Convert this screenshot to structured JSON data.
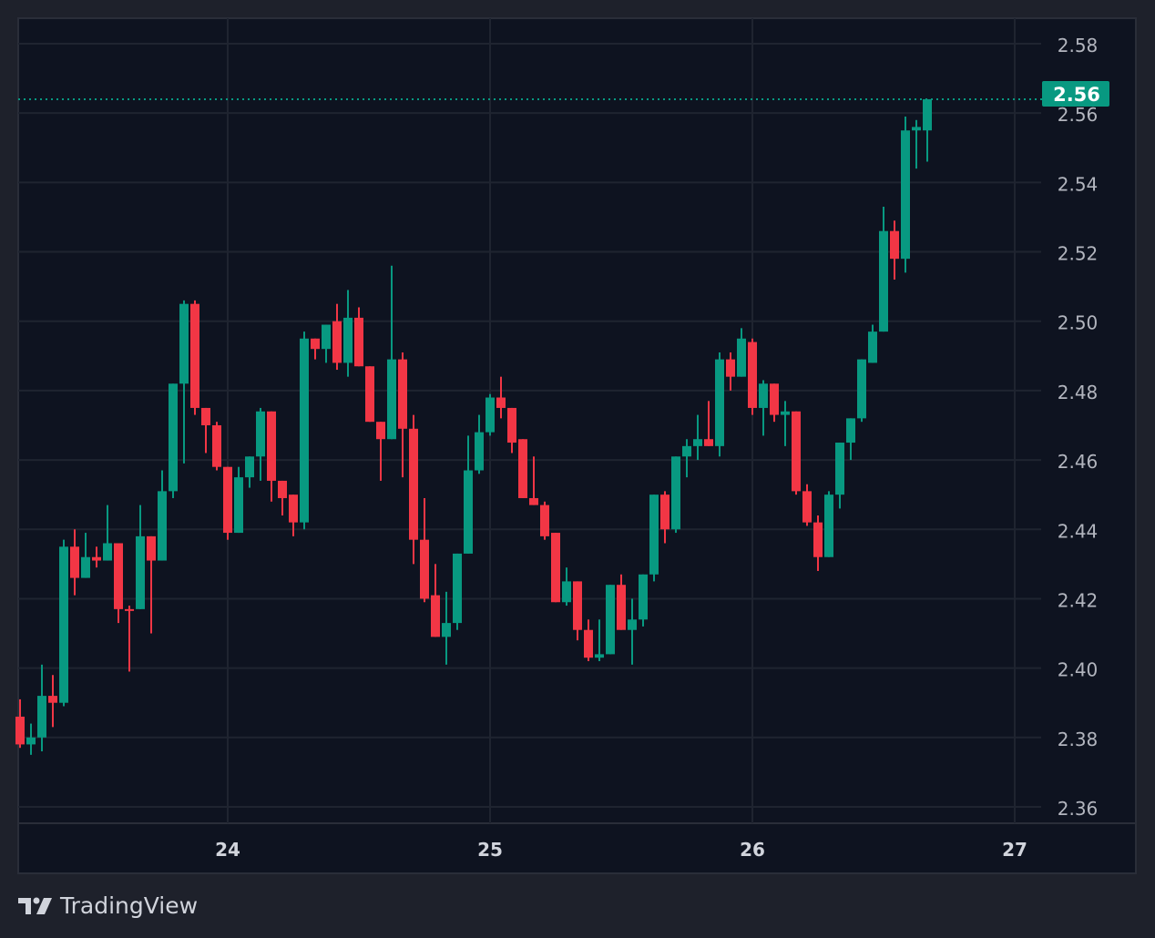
{
  "brand": "TradingView",
  "colors": {
    "up": "#089981",
    "down": "#f23645",
    "panel": "#0e1320",
    "grid": "#1f2430",
    "background": "#1e212b"
  },
  "chart_data": {
    "type": "candlestick",
    "interval": "1h",
    "x_ticks": [
      "24",
      "25",
      "26",
      "27"
    ],
    "y_ticks": [
      "2.58",
      "2.56",
      "2.54",
      "2.52",
      "2.50",
      "2.48",
      "2.46",
      "2.44",
      "2.42",
      "2.40",
      "2.38",
      "2.36"
    ],
    "ylim": [
      2.355,
      2.585
    ],
    "last_price": 2.564,
    "last_price_label": "2.56",
    "grid": true,
    "candles": [
      [
        2.386,
        2.391,
        2.377,
        2.378
      ],
      [
        2.378,
        2.384,
        2.375,
        2.38
      ],
      [
        2.38,
        2.401,
        2.376,
        2.392
      ],
      [
        2.392,
        2.398,
        2.383,
        2.39
      ],
      [
        2.39,
        2.437,
        2.389,
        2.435
      ],
      [
        2.435,
        2.44,
        2.421,
        2.426
      ],
      [
        2.426,
        2.439,
        2.426,
        2.432
      ],
      [
        2.432,
        2.435,
        2.429,
        2.431
      ],
      [
        2.431,
        2.447,
        2.431,
        2.436
      ],
      [
        2.436,
        2.436,
        2.413,
        2.417
      ],
      [
        2.417,
        2.418,
        2.399,
        2.4165
      ],
      [
        2.417,
        2.447,
        2.417,
        2.438
      ],
      [
        2.438,
        2.438,
        2.41,
        2.431
      ],
      [
        2.431,
        2.457,
        2.431,
        2.451
      ],
      [
        2.451,
        2.482,
        2.449,
        2.482
      ],
      [
        2.482,
        2.506,
        2.459,
        2.505
      ],
      [
        2.505,
        2.506,
        2.473,
        2.475
      ],
      [
        2.475,
        2.475,
        2.462,
        2.47
      ],
      [
        2.47,
        2.471,
        2.457,
        2.458
      ],
      [
        2.458,
        2.458,
        2.437,
        2.439
      ],
      [
        2.439,
        2.458,
        2.439,
        2.455
      ],
      [
        2.455,
        2.461,
        2.452,
        2.461
      ],
      [
        2.461,
        2.475,
        2.454,
        2.474
      ],
      [
        2.474,
        2.474,
        2.448,
        2.454
      ],
      [
        2.454,
        2.454,
        2.444,
        2.449
      ],
      [
        2.45,
        2.45,
        2.438,
        2.442
      ],
      [
        2.442,
        2.497,
        2.44,
        2.495
      ],
      [
        2.495,
        2.495,
        2.489,
        2.492
      ],
      [
        2.492,
        2.499,
        2.488,
        2.499
      ],
      [
        2.5,
        2.505,
        2.486,
        2.488
      ],
      [
        2.488,
        2.509,
        2.484,
        2.501
      ],
      [
        2.501,
        2.504,
        2.487,
        2.487
      ],
      [
        2.487,
        2.487,
        2.471,
        2.471
      ],
      [
        2.471,
        2.471,
        2.454,
        2.466
      ],
      [
        2.466,
        2.516,
        2.466,
        2.489
      ],
      [
        2.489,
        2.491,
        2.455,
        2.469
      ],
      [
        2.469,
        2.473,
        2.43,
        2.437
      ],
      [
        2.437,
        2.449,
        2.419,
        2.42
      ],
      [
        2.421,
        2.43,
        2.409,
        2.409
      ],
      [
        2.409,
        2.422,
        2.401,
        2.413
      ],
      [
        2.413,
        2.433,
        2.411,
        2.433
      ],
      [
        2.433,
        2.467,
        2.433,
        2.457
      ],
      [
        2.457,
        2.473,
        2.456,
        2.468
      ],
      [
        2.468,
        2.479,
        2.467,
        2.478
      ],
      [
        2.478,
        2.484,
        2.472,
        2.475
      ],
      [
        2.475,
        2.475,
        2.462,
        2.465
      ],
      [
        2.466,
        2.466,
        2.449,
        2.449
      ],
      [
        2.449,
        2.461,
        2.447,
        2.447
      ],
      [
        2.447,
        2.448,
        2.437,
        2.438
      ],
      [
        2.439,
        2.439,
        2.419,
        2.419
      ],
      [
        2.419,
        2.429,
        2.418,
        2.425
      ],
      [
        2.425,
        2.425,
        2.408,
        2.411
      ],
      [
        2.411,
        2.414,
        2.402,
        2.403
      ],
      [
        2.403,
        2.414,
        2.402,
        2.404
      ],
      [
        2.404,
        2.424,
        2.404,
        2.424
      ],
      [
        2.424,
        2.427,
        2.411,
        2.411
      ],
      [
        2.411,
        2.42,
        2.401,
        2.414
      ],
      [
        2.414,
        2.427,
        2.412,
        2.427
      ],
      [
        2.427,
        2.45,
        2.425,
        2.45
      ],
      [
        2.45,
        2.451,
        2.436,
        2.44
      ],
      [
        2.44,
        2.461,
        2.439,
        2.461
      ],
      [
        2.461,
        2.466,
        2.455,
        2.464
      ],
      [
        2.464,
        2.473,
        2.46,
        2.466
      ],
      [
        2.466,
        2.477,
        2.464,
        2.464
      ],
      [
        2.464,
        2.491,
        2.461,
        2.489
      ],
      [
        2.489,
        2.491,
        2.48,
        2.484
      ],
      [
        2.484,
        2.498,
        2.484,
        2.495
      ],
      [
        2.494,
        2.495,
        2.473,
        2.475
      ],
      [
        2.475,
        2.483,
        2.467,
        2.482
      ],
      [
        2.482,
        2.482,
        2.471,
        2.473
      ],
      [
        2.473,
        2.477,
        2.464,
        2.474
      ],
      [
        2.474,
        2.474,
        2.45,
        2.451
      ],
      [
        2.451,
        2.453,
        2.441,
        2.442
      ],
      [
        2.442,
        2.444,
        2.428,
        2.432
      ],
      [
        2.432,
        2.451,
        2.432,
        2.45
      ],
      [
        2.45,
        2.465,
        2.446,
        2.465
      ],
      [
        2.465,
        2.472,
        2.46,
        2.472
      ],
      [
        2.472,
        2.489,
        2.471,
        2.489
      ],
      [
        2.488,
        2.499,
        2.488,
        2.497
      ],
      [
        2.497,
        2.533,
        2.497,
        2.526
      ],
      [
        2.526,
        2.529,
        2.512,
        2.518
      ],
      [
        2.518,
        2.559,
        2.514,
        2.555
      ],
      [
        2.555,
        2.558,
        2.544,
        2.556
      ],
      [
        2.555,
        2.564,
        2.546,
        2.564
      ]
    ]
  }
}
